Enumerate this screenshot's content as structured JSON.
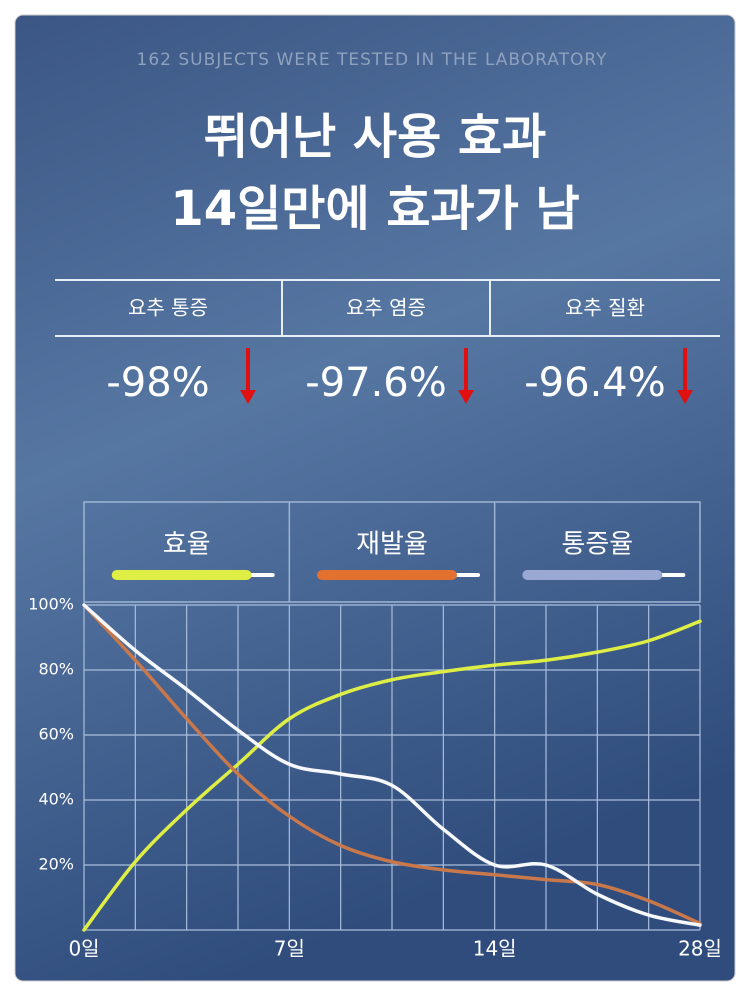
{
  "header": {
    "subtitle": "162 SUBJECTS WERE TESTED IN THE LABORATORY",
    "title_lines": [
      "뛰어난 사용 효과",
      "14일만에 효과가 남"
    ]
  },
  "stats": [
    {
      "label": "요추 통증",
      "value": "-98%"
    },
    {
      "label": "요추 염증",
      "value": "-97.6%"
    },
    {
      "label": "요추 질환",
      "value": "-96.4%"
    }
  ],
  "chart_data": {
    "type": "line",
    "categories": [
      "0일",
      null,
      null,
      null,
      "7일",
      null,
      null,
      null,
      "14일",
      null,
      null,
      null,
      "28일"
    ],
    "series": [
      {
        "name": "효율",
        "color": "#dfee45",
        "values": [
          0,
          21,
          37,
          51,
          65,
          72.5,
          77,
          79.5,
          81.5,
          83,
          85.5,
          89,
          95
        ]
      },
      {
        "name": "재발율",
        "color": "#c8784a",
        "values": [
          100,
          83,
          65,
          48,
          35,
          26,
          21,
          18.5,
          17,
          15.5,
          14,
          9,
          2
        ]
      },
      {
        "name": "통증율",
        "color": "#f6f8fc",
        "values": [
          100,
          86,
          74,
          61.5,
          51,
          48,
          44.5,
          31,
          20,
          20,
          11,
          4.6,
          1.5
        ]
      }
    ],
    "ylim": [
      0,
      100
    ],
    "yticks": [
      {
        "value": 20,
        "label": "20%"
      },
      {
        "value": 40,
        "label": "40%"
      },
      {
        "value": 60,
        "label": "60%"
      },
      {
        "value": 80,
        "label": "80%"
      },
      {
        "value": 100,
        "label": "100%"
      }
    ],
    "grid": true
  }
}
